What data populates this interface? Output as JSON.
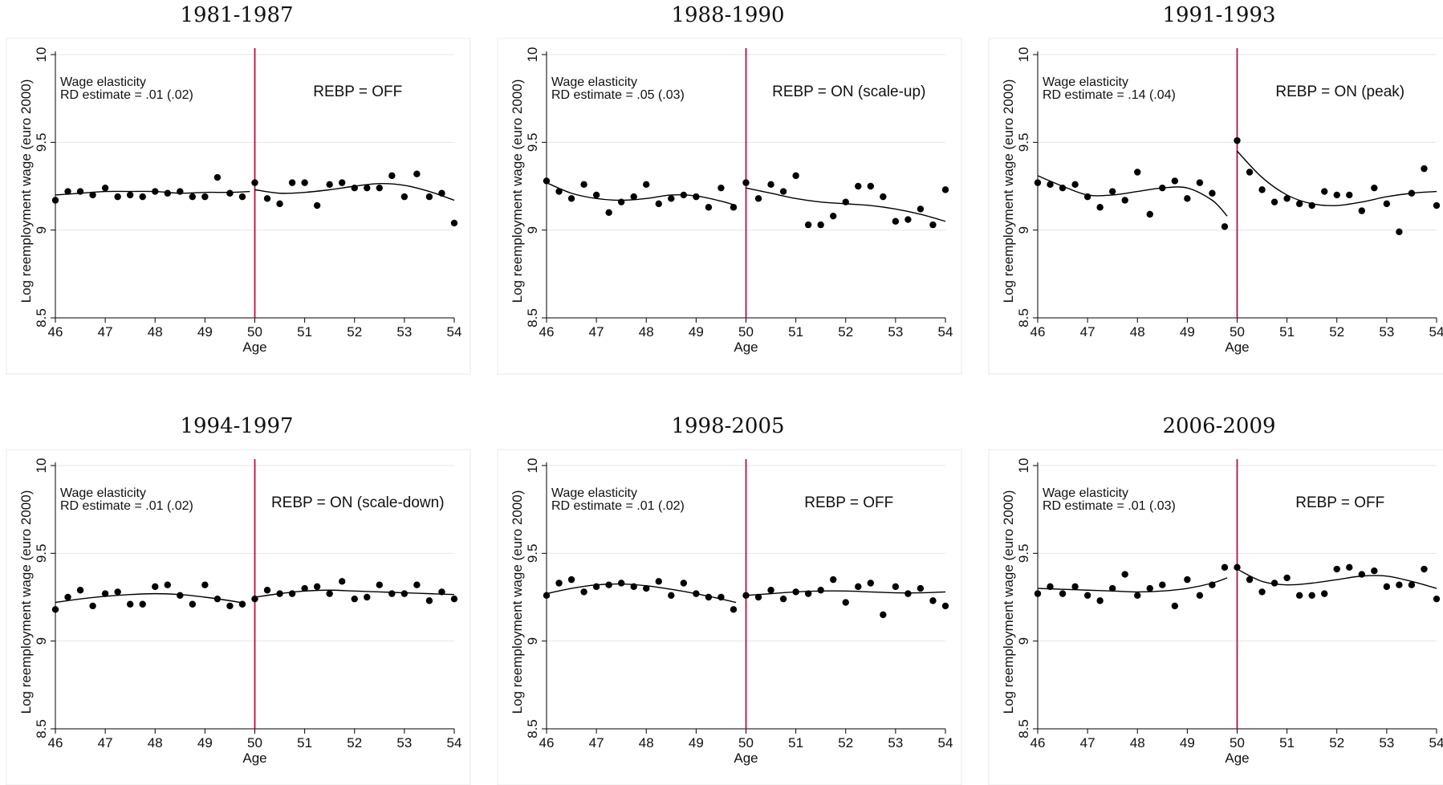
{
  "colors": {
    "cutoff_line": "#b5123f",
    "points": "#000000",
    "fit": "#000000",
    "grid": "#e6e6e6",
    "frame": "#e8e8e8"
  },
  "chart_data": [
    {
      "type": "scatter",
      "title": "1981-1987",
      "xlabel": "Age",
      "ylabel": "Log reemployment wage (euro 2000)",
      "xlim": [
        46,
        54
      ],
      "ylim": [
        8.5,
        10
      ],
      "xticks": [
        "46",
        "47",
        "48",
        "49",
        "50",
        "51",
        "52",
        "53",
        "54"
      ],
      "yticks": [
        "8.5",
        "9",
        "9.5",
        "10"
      ],
      "grid": "horizontal",
      "cutoff": 50,
      "annotation_left": [
        "Wage elasticity",
        "RD estimate = .01 (.02)"
      ],
      "annotation_right": "REBP = OFF",
      "x": [
        46,
        46.25,
        46.5,
        46.75,
        47,
        47.25,
        47.5,
        47.75,
        48,
        48.25,
        48.5,
        48.75,
        49,
        49.25,
        49.5,
        49.75,
        50,
        50.25,
        50.5,
        50.75,
        51,
        51.25,
        51.5,
        51.75,
        52,
        52.25,
        52.5,
        52.75,
        53,
        53.25,
        53.5,
        53.75,
        54
      ],
      "y": [
        9.17,
        9.22,
        9.22,
        9.2,
        9.24,
        9.19,
        9.2,
        9.19,
        9.22,
        9.21,
        9.22,
        9.19,
        9.19,
        9.3,
        9.21,
        9.19,
        9.27,
        9.18,
        9.15,
        9.27,
        9.27,
        9.14,
        9.26,
        9.27,
        9.24,
        9.24,
        9.24,
        9.31,
        9.19,
        9.32,
        9.19,
        9.21,
        9.04
      ],
      "fit_left": {
        "x": [
          46,
          46.5,
          47,
          47.5,
          48,
          48.5,
          49,
          49.5,
          49.9
        ],
        "y": [
          9.2,
          9.21,
          9.22,
          9.22,
          9.22,
          9.21,
          9.215,
          9.215,
          9.22
        ]
      },
      "fit_right": {
        "x": [
          50,
          50.5,
          51,
          51.5,
          52,
          52.5,
          53,
          53.5,
          54
        ],
        "y": [
          9.23,
          9.21,
          9.215,
          9.23,
          9.25,
          9.265,
          9.255,
          9.22,
          9.17
        ]
      }
    },
    {
      "type": "scatter",
      "title": "1988-1990",
      "xlabel": "Age",
      "ylabel": "Log reemployment wage (euro 2000)",
      "xlim": [
        46,
        54
      ],
      "ylim": [
        8.5,
        10
      ],
      "xticks": [
        "46",
        "47",
        "48",
        "49",
        "50",
        "51",
        "52",
        "53",
        "54"
      ],
      "yticks": [
        "8.5",
        "9",
        "9.5",
        "10"
      ],
      "grid": "horizontal",
      "cutoff": 50,
      "annotation_left": [
        "Wage elasticity",
        "RD estimate = .05 (.03)"
      ],
      "annotation_right": "REBP = ON (scale-up)",
      "x": [
        46,
        46.25,
        46.5,
        46.75,
        47,
        47.25,
        47.5,
        47.75,
        48,
        48.25,
        48.5,
        48.75,
        49,
        49.25,
        49.5,
        49.75,
        50,
        50.25,
        50.5,
        50.75,
        51,
        51.25,
        51.5,
        51.75,
        52,
        52.25,
        52.5,
        52.75,
        53,
        53.25,
        53.5,
        53.75,
        54
      ],
      "y": [
        9.28,
        9.22,
        9.18,
        9.26,
        9.2,
        9.1,
        9.16,
        9.19,
        9.26,
        9.15,
        9.18,
        9.2,
        9.19,
        9.13,
        9.24,
        9.13,
        9.27,
        9.18,
        9.26,
        9.22,
        9.31,
        9.03,
        9.03,
        9.08,
        9.16,
        9.25,
        9.25,
        9.19,
        9.05,
        9.06,
        9.12,
        9.03,
        9.23
      ],
      "fit_left": {
        "x": [
          46,
          46.5,
          47,
          47.5,
          48,
          48.5,
          49,
          49.5,
          49.8
        ],
        "y": [
          9.27,
          9.21,
          9.18,
          9.17,
          9.18,
          9.2,
          9.195,
          9.165,
          9.14
        ]
      },
      "fit_right": {
        "x": [
          50,
          50.5,
          51,
          51.5,
          52,
          52.5,
          53,
          53.5,
          54
        ],
        "y": [
          9.24,
          9.21,
          9.18,
          9.16,
          9.15,
          9.14,
          9.12,
          9.09,
          9.05
        ]
      }
    },
    {
      "type": "scatter",
      "title": "1991-1993",
      "xlabel": "Age",
      "ylabel": "Log reemployment wage (euro 2000)",
      "xlim": [
        46,
        54
      ],
      "ylim": [
        8.5,
        10
      ],
      "xticks": [
        "46",
        "47",
        "48",
        "49",
        "50",
        "51",
        "52",
        "53",
        "54"
      ],
      "yticks": [
        "8.5",
        "9",
        "9.5",
        "10"
      ],
      "grid": "horizontal",
      "cutoff": 50,
      "annotation_left": [
        "Wage elasticity",
        "RD estimate = .14 (.04)"
      ],
      "annotation_right": "REBP = ON (peak)",
      "x": [
        46,
        46.25,
        46.5,
        46.75,
        47,
        47.25,
        47.5,
        47.75,
        48,
        48.25,
        48.5,
        48.75,
        49,
        49.25,
        49.5,
        49.75,
        50,
        50.25,
        50.5,
        50.75,
        51,
        51.25,
        51.5,
        51.75,
        52,
        52.25,
        52.5,
        52.75,
        53,
        53.25,
        53.5,
        53.75,
        54
      ],
      "y": [
        9.27,
        9.26,
        9.24,
        9.26,
        9.19,
        9.13,
        9.22,
        9.17,
        9.33,
        9.09,
        9.24,
        9.28,
        9.18,
        9.27,
        9.21,
        9.02,
        9.51,
        9.33,
        9.23,
        9.16,
        9.18,
        9.15,
        9.14,
        9.22,
        9.2,
        9.2,
        9.11,
        9.24,
        9.15,
        8.99,
        9.21,
        9.35,
        9.14
      ],
      "fit_left": {
        "x": [
          46,
          46.5,
          47,
          47.5,
          48,
          48.5,
          49,
          49.5,
          49.8
        ],
        "y": [
          9.31,
          9.25,
          9.2,
          9.2,
          9.22,
          9.24,
          9.24,
          9.17,
          9.08
        ]
      },
      "fit_right": {
        "x": [
          50,
          50.5,
          51,
          51.5,
          52,
          52.5,
          53,
          53.5,
          54
        ],
        "y": [
          9.45,
          9.3,
          9.2,
          9.15,
          9.14,
          9.16,
          9.19,
          9.21,
          9.22
        ]
      }
    },
    {
      "type": "scatter",
      "title": "1994-1997",
      "xlabel": "Age",
      "ylabel": "Log reemployment wage (euro 2000)",
      "xlim": [
        46,
        54
      ],
      "ylim": [
        8.5,
        10
      ],
      "xticks": [
        "46",
        "47",
        "48",
        "49",
        "50",
        "51",
        "52",
        "53",
        "54"
      ],
      "yticks": [
        "8.5",
        "9",
        "9.5",
        "10"
      ],
      "grid": "horizontal",
      "cutoff": 50,
      "annotation_left": [
        "Wage elasticity",
        "RD estimate = .01 (.02)"
      ],
      "annotation_right": "REBP = ON (scale-down)",
      "x": [
        46,
        46.25,
        46.5,
        46.75,
        47,
        47.25,
        47.5,
        47.75,
        48,
        48.25,
        48.5,
        48.75,
        49,
        49.25,
        49.5,
        49.75,
        50,
        50.25,
        50.5,
        50.75,
        51,
        51.25,
        51.5,
        51.75,
        52,
        52.25,
        52.5,
        52.75,
        53,
        53.25,
        53.5,
        53.75,
        54
      ],
      "y": [
        9.18,
        9.25,
        9.29,
        9.2,
        9.27,
        9.28,
        9.21,
        9.21,
        9.31,
        9.32,
        9.26,
        9.21,
        9.32,
        9.24,
        9.2,
        9.21,
        9.24,
        9.29,
        9.27,
        9.27,
        9.3,
        9.31,
        9.27,
        9.34,
        9.24,
        9.25,
        9.32,
        9.27,
        9.27,
        9.32,
        9.23,
        9.28,
        9.24
      ],
      "fit_left": {
        "x": [
          46,
          46.5,
          47,
          47.5,
          48,
          48.5,
          49,
          49.5,
          49.8
        ],
        "y": [
          9.22,
          9.24,
          9.255,
          9.265,
          9.27,
          9.265,
          9.25,
          9.23,
          9.215
        ]
      },
      "fit_right": {
        "x": [
          50,
          50.5,
          51,
          51.5,
          52,
          52.5,
          53,
          53.5,
          54
        ],
        "y": [
          9.25,
          9.27,
          9.285,
          9.29,
          9.285,
          9.28,
          9.275,
          9.27,
          9.265
        ]
      }
    },
    {
      "type": "scatter",
      "title": "1998-2005",
      "xlabel": "Age",
      "ylabel": "Log reemployment wage (euro 2000)",
      "xlim": [
        46,
        54
      ],
      "ylim": [
        8.5,
        10
      ],
      "xticks": [
        "46",
        "47",
        "48",
        "49",
        "50",
        "51",
        "52",
        "53",
        "54"
      ],
      "yticks": [
        "8.5",
        "9",
        "9.5",
        "10"
      ],
      "grid": "horizontal",
      "cutoff": 50,
      "annotation_left": [
        "Wage elasticity",
        "RD estimate = .01 (.02)"
      ],
      "annotation_right": "REBP = OFF",
      "x": [
        46,
        46.25,
        46.5,
        46.75,
        47,
        47.25,
        47.5,
        47.75,
        48,
        48.25,
        48.5,
        48.75,
        49,
        49.25,
        49.5,
        49.75,
        50,
        50.25,
        50.5,
        50.75,
        51,
        51.25,
        51.5,
        51.75,
        52,
        52.25,
        52.5,
        52.75,
        53,
        53.25,
        53.5,
        53.75,
        54
      ],
      "y": [
        9.26,
        9.33,
        9.35,
        9.28,
        9.31,
        9.32,
        9.33,
        9.31,
        9.3,
        9.34,
        9.26,
        9.33,
        9.27,
        9.25,
        9.25,
        9.18,
        9.26,
        9.25,
        9.29,
        9.24,
        9.28,
        9.27,
        9.29,
        9.35,
        9.22,
        9.31,
        9.33,
        9.15,
        9.31,
        9.27,
        9.3,
        9.23,
        9.2
      ],
      "fit_left": {
        "x": [
          46,
          46.5,
          47,
          47.5,
          48,
          48.5,
          49,
          49.5,
          49.8
        ],
        "y": [
          9.27,
          9.3,
          9.32,
          9.325,
          9.315,
          9.295,
          9.27,
          9.24,
          9.22
        ]
      },
      "fit_right": {
        "x": [
          50,
          50.5,
          51,
          51.5,
          52,
          52.5,
          53,
          53.5,
          54
        ],
        "y": [
          9.26,
          9.27,
          9.28,
          9.285,
          9.285,
          9.28,
          9.275,
          9.275,
          9.28
        ]
      }
    },
    {
      "type": "scatter",
      "title": "2006-2009",
      "xlabel": "Age",
      "ylabel": "Log reemployment wage (euro 2000)",
      "xlim": [
        46,
        54
      ],
      "ylim": [
        8.5,
        10
      ],
      "xticks": [
        "46",
        "47",
        "48",
        "49",
        "50",
        "51",
        "52",
        "53",
        "54"
      ],
      "yticks": [
        "8.5",
        "9",
        "9.5",
        "10"
      ],
      "grid": "horizontal",
      "cutoff": 50,
      "annotation_left": [
        "Wage elasticity",
        "RD estimate = .01 (.03)"
      ],
      "annotation_right": "REBP = OFF",
      "x": [
        46,
        46.25,
        46.5,
        46.75,
        47,
        47.25,
        47.5,
        47.75,
        48,
        48.25,
        48.5,
        48.75,
        49,
        49.25,
        49.5,
        49.75,
        50,
        50.25,
        50.5,
        50.75,
        51,
        51.25,
        51.5,
        51.75,
        52,
        52.25,
        52.5,
        52.75,
        53,
        53.25,
        53.5,
        53.75,
        54
      ],
      "y": [
        9.27,
        9.31,
        9.27,
        9.31,
        9.26,
        9.23,
        9.3,
        9.38,
        9.26,
        9.3,
        9.32,
        9.2,
        9.35,
        9.26,
        9.32,
        9.42,
        9.42,
        9.35,
        9.28,
        9.33,
        9.36,
        9.26,
        9.26,
        9.27,
        9.41,
        9.42,
        9.38,
        9.4,
        9.31,
        9.32,
        9.32,
        9.41,
        9.24
      ],
      "fit_left": {
        "x": [
          46,
          46.5,
          47,
          47.5,
          48,
          48.5,
          49,
          49.5,
          49.8
        ],
        "y": [
          9.3,
          9.295,
          9.29,
          9.285,
          9.28,
          9.285,
          9.3,
          9.33,
          9.36
        ]
      },
      "fit_right": {
        "x": [
          50,
          50.5,
          51,
          51.5,
          52,
          52.5,
          53,
          53.5,
          54
        ],
        "y": [
          9.41,
          9.34,
          9.32,
          9.33,
          9.35,
          9.37,
          9.37,
          9.34,
          9.3
        ]
      }
    }
  ]
}
